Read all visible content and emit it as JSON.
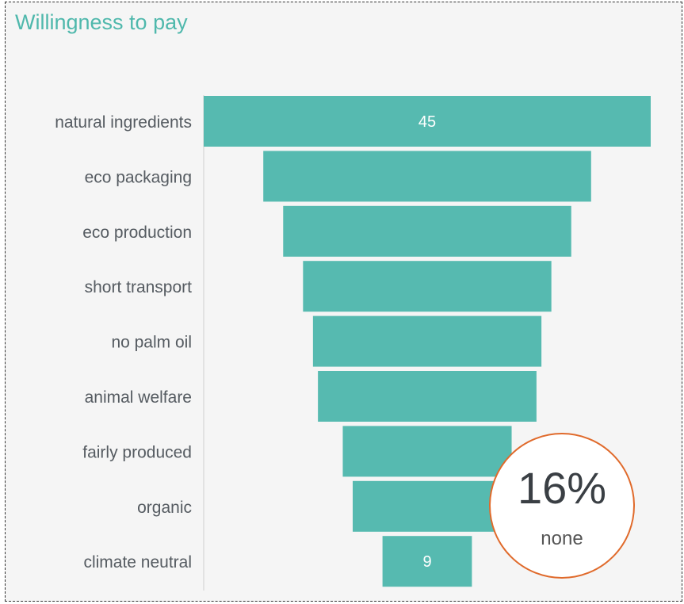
{
  "chart_data": {
    "type": "bar",
    "title": "Willingness to pay",
    "orientation": "horizontal-centered",
    "categories": [
      "natural ingredients",
      "eco packaging",
      "eco production",
      "short transport",
      "no palm oil",
      "animal welfare",
      "fairly produced",
      "organic",
      "climate neutral"
    ],
    "values": [
      45,
      33,
      29,
      25,
      23,
      22,
      17,
      15,
      9
    ],
    "data_labels": [
      "45",
      "",
      "",
      "",
      "",
      "",
      "",
      "",
      "9"
    ],
    "xlim": [
      0,
      45
    ],
    "grid": false,
    "legend": "none",
    "bar_color": "#56bab0",
    "label_color": "#ffffff",
    "category_label_color": "#555b61"
  },
  "callout": {
    "value": "16%",
    "label": "none",
    "border_color": "#e06a2b"
  },
  "colors": {
    "title": "#4fb8ac",
    "background": "#f5f5f5"
  }
}
